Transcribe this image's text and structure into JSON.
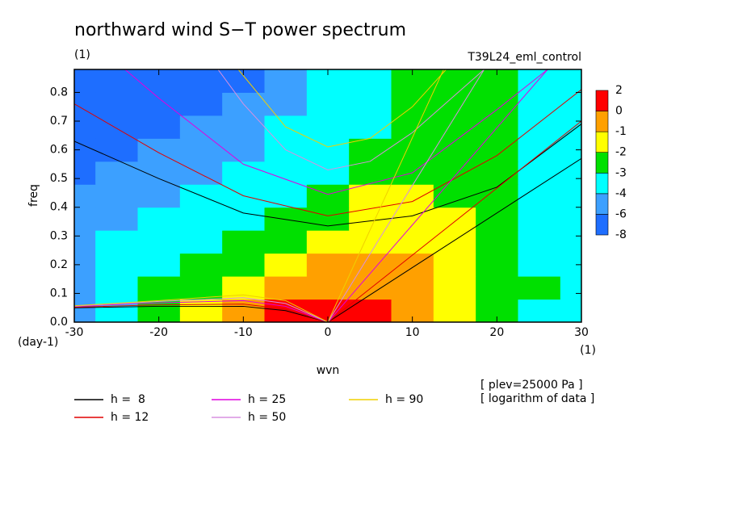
{
  "chart_data": {
    "type": "contour",
    "title": "northward wind S−T power spectrum",
    "subtitle": "(1)",
    "run_label": "T39L24_eml_control",
    "xlabel": "wvn",
    "ylabel": "freq",
    "x_unit": "(1)",
    "y_unit": "(day-1)",
    "notes": [
      "[ plev=25000 Pa ]",
      "[ logarithm of data ]"
    ],
    "xlim": [
      -30,
      30
    ],
    "ylim": [
      0,
      0.88
    ],
    "xticks": [
      -30,
      -20,
      -10,
      0,
      10,
      20,
      30
    ],
    "yticks": [
      {
        "value": 0,
        "label": "0.0"
      },
      0.1,
      0.2,
      0.3,
      0.4,
      0.5,
      0.6,
      0.7,
      0.8
    ],
    "levels": [
      -8,
      -6,
      -4,
      -3,
      -2,
      -1,
      0,
      2
    ],
    "colors": [
      "#1e6eff",
      "#3ca0ff",
      "#00ffff",
      "#00e000",
      "#ffff00",
      "#ffa000",
      "#ff0000"
    ],
    "x": [
      -30,
      -25,
      -20,
      -15,
      -10,
      -5,
      0,
      5,
      10,
      15,
      20,
      25,
      30
    ],
    "y": [
      0.04,
      0.12,
      0.2,
      0.28,
      0.36,
      0.44,
      0.52,
      0.6,
      0.68,
      0.76,
      0.84
    ],
    "z": [
      [
        -5,
        -3.5,
        -2.5,
        -1.5,
        -0.5,
        1,
        1,
        1,
        -0.5,
        -1.5,
        -2.5,
        -3.5,
        -3.5
      ],
      [
        -5,
        -3.5,
        -2.5,
        -2.5,
        -1.5,
        -0.5,
        -0.5,
        -0.5,
        -0.5,
        -1.5,
        -2.5,
        -2.5,
        -3.5
      ],
      [
        -5,
        -3.5,
        -3.5,
        -2.5,
        -2.5,
        -1.5,
        -0.5,
        -0.5,
        -0.5,
        -1.5,
        -2.5,
        -3.5,
        -3.5
      ],
      [
        -5,
        -3.5,
        -3.5,
        -3.5,
        -2.5,
        -2.5,
        -1.5,
        -1.5,
        -1.5,
        -1.5,
        -2.5,
        -3.5,
        -3.5
      ],
      [
        -5,
        -5,
        -3.5,
        -3.5,
        -3.5,
        -2.5,
        -2.5,
        -1.5,
        -1.5,
        -1.5,
        -2.5,
        -3.5,
        -3.5
      ],
      [
        -5,
        -5,
        -5,
        -3.5,
        -3.5,
        -3.5,
        -2.5,
        -1.5,
        -1.5,
        -2.5,
        -2.5,
        -3.5,
        -3.5
      ],
      [
        -7,
        -5,
        -5,
        -5,
        -3.5,
        -3.5,
        -3.5,
        -2.5,
        -2.5,
        -2.5,
        -2.5,
        -3.5,
        -3.5
      ],
      [
        -7,
        -7,
        -5,
        -5,
        -5,
        -3.5,
        -3.5,
        -2.5,
        -2.5,
        -2.5,
        -2.5,
        -3.5,
        -3.5
      ],
      [
        -7,
        -7,
        -7,
        -5,
        -5,
        -3.5,
        -3.5,
        -3.5,
        -2.5,
        -2.5,
        -2.5,
        -3.5,
        -3.5
      ],
      [
        -7,
        -7,
        -7,
        -7,
        -5,
        -5,
        -3.5,
        -3.5,
        -2.5,
        -2.5,
        -2.5,
        -3.5,
        -3.5
      ],
      [
        -7,
        -7,
        -7,
        -7,
        -7,
        -5,
        -3.5,
        -3.5,
        -2.5,
        -2.5,
        -2.5,
        -3.5,
        -3.5
      ]
    ],
    "series": [
      {
        "name": "h =  8",
        "color": "#000000",
        "curves": [
          {
            "x": [
              0,
              30
            ],
            "y": [
              0,
              0.57
            ]
          },
          {
            "x": [
              -30,
              -20,
              -10,
              0,
              10,
              20,
              30
            ],
            "y": [
              0.63,
              0.5,
              0.38,
              0.335,
              0.37,
              0.47,
              0.69
            ]
          },
          {
            "x": [
              -30,
              -20,
              -10,
              -5,
              0
            ],
            "y": [
              0.05,
              0.055,
              0.055,
              0.04,
              0
            ]
          }
        ]
      },
      {
        "name": "h = 12",
        "color": "#e00000",
        "curves": [
          {
            "x": [
              0,
              30
            ],
            "y": [
              0,
              0.7
            ]
          },
          {
            "x": [
              -30,
              -20,
              -10,
              0,
              10,
              20,
              30
            ],
            "y": [
              0.76,
              0.59,
              0.44,
              0.37,
              0.42,
              0.58,
              0.81
            ]
          },
          {
            "x": [
              -30,
              -20,
              -10,
              -5,
              0
            ],
            "y": [
              0.052,
              0.06,
              0.063,
              0.045,
              0
            ]
          }
        ]
      },
      {
        "name": "h = 25",
        "color": "#e000e0",
        "curves": [
          {
            "x": [
              0,
              26
            ],
            "y": [
              0,
              0.88
            ]
          },
          {
            "x": [
              -24,
              -20,
              -10,
              0,
              10,
              20,
              26
            ],
            "y": [
              0.88,
              0.78,
              0.55,
              0.445,
              0.52,
              0.74,
              0.88
            ]
          },
          {
            "x": [
              -30,
              -20,
              -10,
              -5,
              0
            ],
            "y": [
              0.055,
              0.067,
              0.075,
              0.055,
              0
            ]
          }
        ]
      },
      {
        "name": "h = 50",
        "color": "#d890e0",
        "curves": [
          {
            "x": [
              0,
              18.5
            ],
            "y": [
              0,
              0.88
            ]
          },
          {
            "x": [
              -13,
              -10,
              -5,
              0,
              5,
              10,
              18.5
            ],
            "y": [
              0.88,
              0.76,
              0.6,
              0.53,
              0.56,
              0.66,
              0.88
            ]
          },
          {
            "x": [
              -30,
              -20,
              -10,
              -5,
              0
            ],
            "y": [
              0.056,
              0.072,
              0.085,
              0.065,
              0
            ]
          }
        ]
      },
      {
        "name": "h = 90",
        "color": "#f0d000",
        "curves": [
          {
            "x": [
              0,
              13.7
            ],
            "y": [
              0,
              0.88
            ]
          },
          {
            "x": [
              -10.6,
              -5,
              0,
              5,
              10,
              14
            ],
            "y": [
              0.88,
              0.68,
              0.61,
              0.64,
              0.75,
              0.88
            ]
          },
          {
            "x": [
              -30,
              -20,
              -10,
              -5,
              0
            ],
            "y": [
              0.057,
              0.075,
              0.095,
              0.075,
              0
            ]
          }
        ]
      }
    ]
  }
}
